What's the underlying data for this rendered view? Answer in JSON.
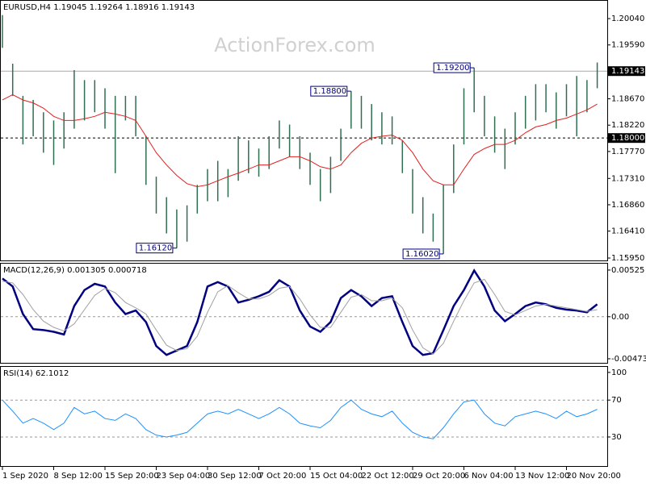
{
  "chart_data": [
    {
      "type": "ohlc",
      "title": "EURUSD,H4  1.19045 1.19264 1.18916 1.19143",
      "watermark": "ActionForex.com",
      "color": "#2f6f4f",
      "ma_color": "#e02020",
      "categories": [
        "1 Sep 2020",
        null,
        null,
        null,
        null,
        "8 Sep 12:00",
        null,
        null,
        null,
        null,
        "15 Sep 20:00",
        null,
        null,
        null,
        null,
        "23 Sep 04:00",
        null,
        null,
        null,
        null,
        "30 Sep 12:00",
        null,
        null,
        null,
        null,
        "7 Oct 20:00",
        null,
        null,
        null,
        null,
        "15 Oct 04:00",
        null,
        null,
        null,
        null,
        "22 Oct 12:00",
        null,
        null,
        null,
        null,
        "29 Oct 20:00",
        null,
        null,
        null,
        null,
        "6 Nov 04:00",
        null,
        null,
        null,
        null,
        "13 Nov 12:00",
        null,
        null,
        null,
        null,
        "20 Nov 20:00",
        null,
        null,
        null
      ],
      "high": [
        1.201,
        1.1927,
        1.1872,
        1.1865,
        1.1844,
        1.183,
        1.1844,
        1.1916,
        1.1899,
        1.1899,
        1.1885,
        1.1872,
        1.1872,
        1.1872,
        1.1803,
        1.1734,
        1.1699,
        1.1678,
        1.1685,
        1.172,
        1.1747,
        1.1761,
        1.1747,
        1.1803,
        1.1796,
        1.1782,
        1.1803,
        1.183,
        1.1823,
        1.1803,
        1.1775,
        1.1747,
        1.1768,
        1.1816,
        1.188,
        1.1872,
        1.1858,
        1.1844,
        1.1837,
        1.1796,
        1.1747,
        1.1699,
        1.1671,
        1.172,
        1.1789,
        1.1885,
        1.192,
        1.1872,
        1.1837,
        1.1816,
        1.1844,
        1.1872,
        1.1892,
        1.1892,
        1.1878,
        1.1892,
        1.1906,
        1.1899,
        1.1929
      ],
      "low": [
        1.1954,
        1.1872,
        1.1789,
        1.1803,
        1.1775,
        1.1754,
        1.1782,
        1.1816,
        1.183,
        1.1844,
        1.1816,
        1.174,
        1.183,
        1.1803,
        1.172,
        1.1671,
        1.1637,
        1.1612,
        1.1623,
        1.1671,
        1.1692,
        1.1692,
        1.1699,
        1.1727,
        1.174,
        1.1734,
        1.1747,
        1.1782,
        1.1768,
        1.1747,
        1.172,
        1.1692,
        1.1706,
        1.1761,
        1.1816,
        1.1816,
        1.1796,
        1.1789,
        1.1789,
        1.174,
        1.1671,
        1.1637,
        1.1623,
        1.1602,
        1.1706,
        1.1789,
        1.1844,
        1.1803,
        1.1775,
        1.1747,
        1.1789,
        1.1816,
        1.183,
        1.1844,
        1.1816,
        1.1837,
        1.1803,
        1.1844,
        1.1885
      ],
      "ma": [
        1.1865,
        1.1874,
        1.1865,
        1.186,
        1.1851,
        1.1837,
        1.183,
        1.183,
        1.1833,
        1.1837,
        1.1844,
        1.1841,
        1.1837,
        1.183,
        1.1803,
        1.1775,
        1.1754,
        1.1736,
        1.1722,
        1.1717,
        1.172,
        1.1727,
        1.1734,
        1.174,
        1.1747,
        1.1754,
        1.1754,
        1.1761,
        1.1768,
        1.1768,
        1.1761,
        1.1751,
        1.1747,
        1.1754,
        1.1775,
        1.1791,
        1.18,
        1.1803,
        1.1805,
        1.1796,
        1.1775,
        1.1747,
        1.1727,
        1.172,
        1.172,
        1.1747,
        1.1772,
        1.1782,
        1.1789,
        1.1789,
        1.1796,
        1.1809,
        1.1819,
        1.1823,
        1.183,
        1.1834,
        1.1841,
        1.1848,
        1.1858
      ],
      "annotations": [
        {
          "label": "1.16120",
          "value": 1.1612,
          "bar": 17
        },
        {
          "label": "1.18800",
          "value": 1.188,
          "bar": 34
        },
        {
          "label": "1.16020",
          "value": 1.1602,
          "bar": 43
        },
        {
          "label": "1.19200",
          "value": 1.192,
          "bar": 46
        }
      ],
      "last_price": 1.19143,
      "level": {
        "value": 1.18,
        "label": "1.18000"
      },
      "ylim": [
        1.15909,
        1.20344
      ],
      "yticks": [
        {
          "value": 1.2004,
          "label": "1.20040"
        },
        {
          "value": 1.1959,
          "label": "1.19590"
        },
        {
          "value": 1.1867,
          "label": "1.18670"
        },
        {
          "value": 1.1822,
          "label": "1.18220"
        },
        {
          "value": 1.1777,
          "label": "1.17770"
        },
        {
          "value": 1.1731,
          "label": "1.17310"
        },
        {
          "value": 1.1686,
          "label": "1.16860"
        },
        {
          "value": 1.1641,
          "label": "1.16410"
        },
        {
          "value": 1.1595,
          "label": "1.15950"
        }
      ]
    },
    {
      "type": "line",
      "title": "MACD(12,26,9) 0.001305 0.000718",
      "series": [
        {
          "color": "#000080",
          "width": 2.5,
          "values": [
            0.0043,
            0.0034,
            0.0003,
            -0.0014,
            -0.0015,
            -0.0017,
            -0.002,
            0.0012,
            0.003,
            0.0037,
            0.0034,
            0.0016,
            0.0003,
            0.0007,
            -0.0006,
            -0.0033,
            -0.0043,
            -0.0038,
            -0.0033,
            -0.0006,
            0.0034,
            0.0039,
            0.0034,
            0.0016,
            0.0019,
            0.0023,
            0.0028,
            0.0041,
            0.0034,
            0.0007,
            -0.0011,
            -0.0017,
            -0.0006,
            0.0021,
            0.003,
            0.0023,
            0.0012,
            0.0021,
            0.0023,
            -0.0006,
            -0.0033,
            -0.0043,
            -0.0041,
            -0.0015,
            0.0012,
            0.003,
            0.0052,
            0.0034,
            0.0007,
            -0.0005,
            0.0003,
            0.0012,
            0.0016,
            0.0014,
            0.001,
            0.0008,
            0.0007,
            0.0005,
            0.0014
          ]
        },
        {
          "color": "#a0a0a0",
          "width": 1,
          "values": [
            0.004,
            0.0038,
            0.0025,
            0.0008,
            -0.0005,
            -0.0012,
            -0.0016,
            -0.0008,
            0.0008,
            0.0024,
            0.0032,
            0.0027,
            0.0016,
            0.001,
            0.0003,
            -0.0015,
            -0.0032,
            -0.0038,
            -0.0036,
            -0.0022,
            0.0005,
            0.0028,
            0.0035,
            0.0027,
            0.002,
            0.002,
            0.0024,
            0.0032,
            0.0034,
            0.002,
            0.0002,
            -0.0012,
            -0.0012,
            0.0005,
            0.0022,
            0.0025,
            0.0018,
            0.0018,
            0.0021,
            0.001,
            -0.0015,
            -0.0035,
            -0.0042,
            -0.003,
            -0.0005,
            0.0018,
            0.0038,
            0.0042,
            0.0025,
            0.0006,
            0.0002,
            0.0007,
            0.0012,
            0.0014,
            0.0012,
            0.001,
            0.0008,
            0.0006,
            0.0008
          ]
        }
      ],
      "levels": [
        0
      ],
      "ylim": [
        -0.00519,
        0.00597
      ],
      "yticks": [
        0.00525,
        {
          "value": 0,
          "label": "0.00"
        },
        -0.004732
      ]
    },
    {
      "type": "line",
      "title": "RSI(14) 62.1012",
      "series": [
        {
          "color": "#1e90ff",
          "width": 1,
          "values": [
            70,
            58,
            45,
            50,
            45,
            38,
            45,
            62,
            55,
            58,
            50,
            48,
            55,
            50,
            38,
            32,
            30,
            32,
            35,
            45,
            55,
            58,
            55,
            60,
            55,
            50,
            55,
            62,
            55,
            45,
            42,
            40,
            48,
            62,
            70,
            60,
            55,
            52,
            58,
            45,
            35,
            30,
            28,
            40,
            55,
            68,
            70,
            55,
            45,
            42,
            52,
            55,
            58,
            55,
            50,
            58,
            52,
            55,
            60
          ]
        }
      ],
      "levels": [
        70,
        30
      ],
      "ylim": [
        -1.5,
        106
      ],
      "yticks": [
        100,
        70,
        30
      ]
    }
  ]
}
